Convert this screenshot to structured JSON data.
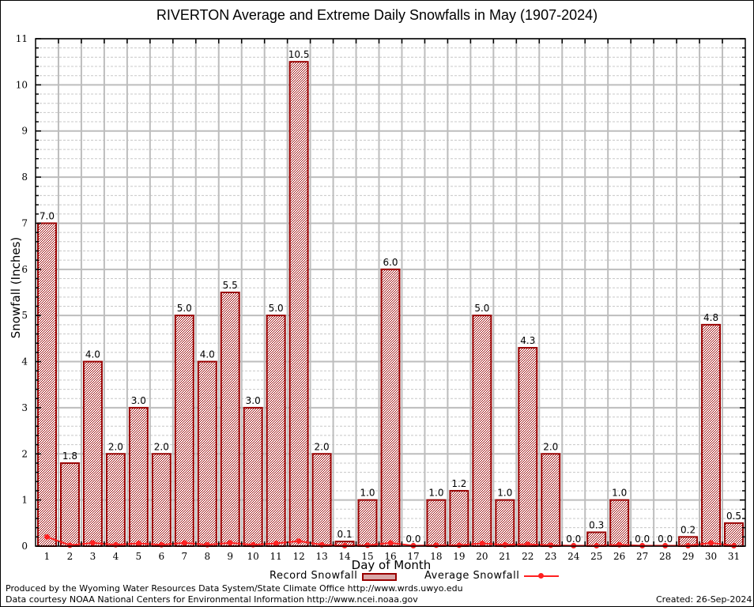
{
  "chart_data": {
    "type": "bar",
    "title": "RIVERTON Average and Extreme Daily Snowfalls in May (1907-2024)",
    "xlabel": "Day of Month",
    "ylabel": "Snowfall (Inches)",
    "ylim": [
      0,
      11
    ],
    "yticks": [
      "0",
      "1",
      "2",
      "3",
      "4",
      "5",
      "6",
      "7",
      "8",
      "9",
      "10",
      "11"
    ],
    "categories": [
      "1",
      "2",
      "3",
      "4",
      "5",
      "6",
      "7",
      "8",
      "9",
      "10",
      "11",
      "12",
      "13",
      "14",
      "15",
      "16",
      "17",
      "18",
      "19",
      "20",
      "21",
      "22",
      "23",
      "24",
      "25",
      "26",
      "27",
      "28",
      "29",
      "30",
      "31"
    ],
    "grid": true,
    "legend_position": "bottom-center",
    "series": [
      {
        "name": "Record Snowfall",
        "type": "bar",
        "color": "#990000",
        "values": [
          7.0,
          1.8,
          4.0,
          2.0,
          3.0,
          2.0,
          5.0,
          4.0,
          5.5,
          3.0,
          5.0,
          10.5,
          2.0,
          0.1,
          1.0,
          6.0,
          0.0,
          1.0,
          1.2,
          5.0,
          1.0,
          4.3,
          2.0,
          0.0,
          0.3,
          1.0,
          0.0,
          0.0,
          0.2,
          4.8,
          0.5
        ],
        "labels": [
          "7.0",
          "1.8",
          "4.0",
          "2.0",
          "3.0",
          "2.0",
          "5.0",
          "4.0",
          "5.5",
          "3.0",
          "5.0",
          "10.5",
          "2.0",
          "0.1",
          "1.0",
          "6.0",
          "0.0",
          "1.0",
          "1.2",
          "5.0",
          "1.0",
          "4.3",
          "2.0",
          "0.0",
          "0.3",
          "1.0",
          "0.0",
          "0.0",
          "0.2",
          "4.8",
          "0.5"
        ]
      },
      {
        "name": "Average Snowfall",
        "type": "line",
        "color": "#ff2020",
        "values": [
          0.2,
          0.02,
          0.07,
          0.03,
          0.06,
          0.03,
          0.07,
          0.03,
          0.07,
          0.03,
          0.06,
          0.11,
          0.03,
          0.01,
          0.02,
          0.07,
          0.01,
          0.02,
          0.02,
          0.06,
          0.03,
          0.04,
          0.02,
          0.01,
          0.01,
          0.03,
          0.01,
          0.01,
          0.01,
          0.07,
          0.01
        ]
      }
    ]
  },
  "footer": {
    "produced_by": "Produced by the Wyoming Water Resources Data System/State Climate Office http://www.wrds.uwyo.edu",
    "data_courtesy": "Data courtesy NOAA National Centers for Environmental Information http://www.ncei.noaa.gov",
    "created": "Created: 26-Sep-2024"
  }
}
